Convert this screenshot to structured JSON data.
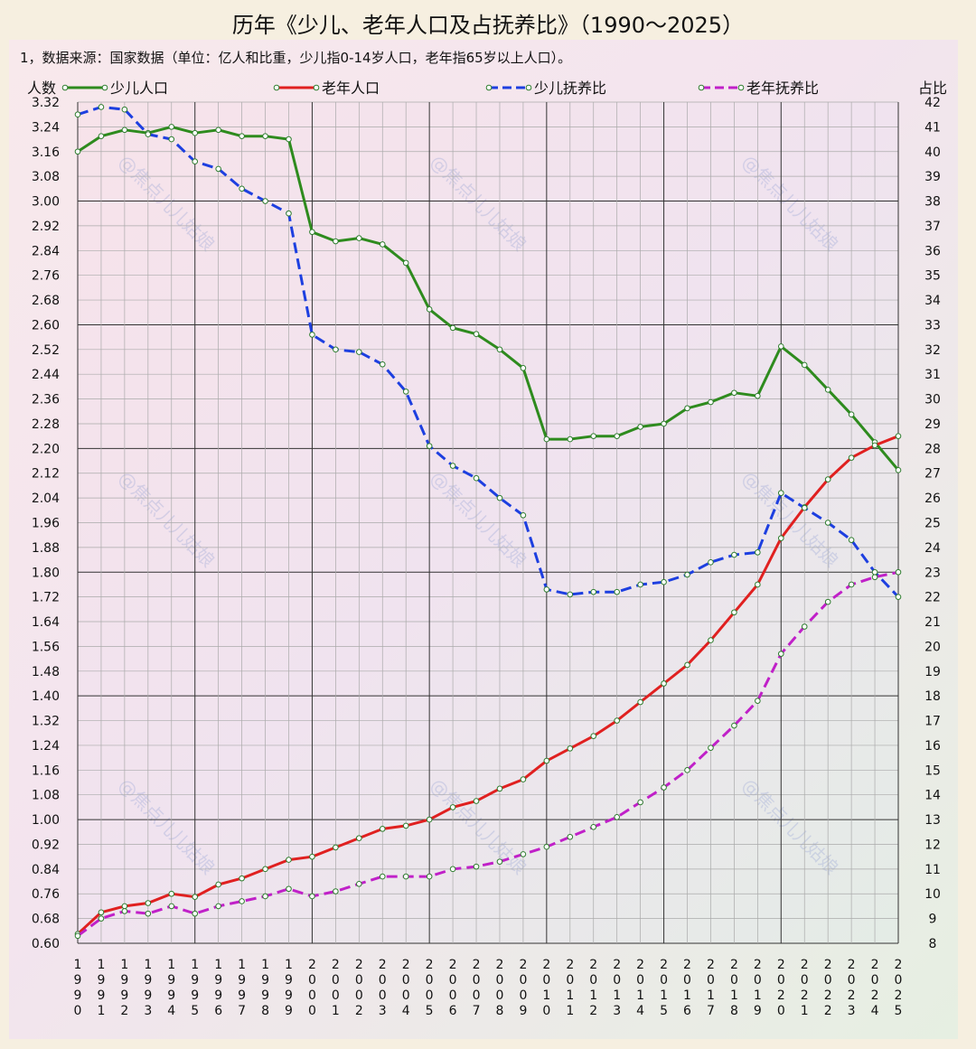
{
  "header": {
    "title": "历年《少儿、老年人口及占抚养比》（1990～2025）",
    "subtitle": "1，数据来源：国家数据（单位：亿人和比重，少儿指0-14岁人口，老年指65岁以上人口）。"
  },
  "watermark": "@焦点儿儿姑娘",
  "colors": {
    "child_population": "#2e8b1e",
    "elderly_population": "#e02020",
    "child_ratio": "#1d3fe0",
    "elderly_ratio": "#c020c8",
    "grid_minor": "#aaaaaa",
    "grid_major": "#333333"
  },
  "chart_data": {
    "type": "line",
    "title": "历年《少儿、老年人口及占抚养比》（1990～2025）",
    "ylabel_left": "人数",
    "ylabel_right": "占比",
    "ylim_left": [
      0.6,
      3.32
    ],
    "ylim_right": [
      8,
      42
    ],
    "yticks_left": [
      "0.60",
      "0.68",
      "0.76",
      "0.84",
      "0.92",
      "1.00",
      "1.08",
      "1.16",
      "1.24",
      "1.32",
      "1.40",
      "1.48",
      "1.56",
      "1.64",
      "1.72",
      "1.80",
      "1.88",
      "1.96",
      "2.04",
      "2.12",
      "2.20",
      "2.28",
      "2.36",
      "2.44",
      "2.52",
      "2.60",
      "2.68",
      "2.76",
      "2.84",
      "2.92",
      "3.00",
      "3.08",
      "3.16",
      "3.24",
      "3.32"
    ],
    "yticks_right": [
      "8",
      "9",
      "10",
      "11",
      "12",
      "13",
      "14",
      "15",
      "16",
      "17",
      "18",
      "19",
      "20",
      "21",
      "22",
      "23",
      "24",
      "25",
      "26",
      "27",
      "28",
      "29",
      "30",
      "31",
      "32",
      "33",
      "34",
      "35",
      "36",
      "37",
      "38",
      "39",
      "40",
      "41",
      "42"
    ],
    "x": [
      "1990",
      "1991",
      "1992",
      "1993",
      "1994",
      "1995",
      "1996",
      "1997",
      "1998",
      "1999",
      "2000",
      "2001",
      "2002",
      "2003",
      "2004",
      "2005",
      "2006",
      "2007",
      "2008",
      "2009",
      "2010",
      "2011",
      "2012",
      "2013",
      "2014",
      "2015",
      "2016",
      "2017",
      "2018",
      "2019",
      "2020",
      "2021",
      "2022",
      "2023",
      "2024",
      "2025"
    ],
    "legend_position": "top",
    "grid": true,
    "series": [
      {
        "name": "少儿人口",
        "axis": "left",
        "style": "solid",
        "color_key": "child_population",
        "values": [
          3.16,
          3.21,
          3.23,
          3.22,
          3.24,
          3.22,
          3.23,
          3.21,
          3.21,
          3.2,
          2.9,
          2.87,
          2.88,
          2.86,
          2.8,
          2.65,
          2.59,
          2.57,
          2.52,
          2.46,
          2.23,
          2.23,
          2.24,
          2.24,
          2.27,
          2.28,
          2.33,
          2.35,
          2.38,
          2.37,
          2.53,
          2.47,
          2.39,
          2.31,
          2.22,
          2.13
        ]
      },
      {
        "name": "老年人口",
        "axis": "left",
        "style": "solid",
        "color_key": "elderly_population",
        "values": [
          0.63,
          0.7,
          0.72,
          0.73,
          0.76,
          0.75,
          0.79,
          0.81,
          0.84,
          0.87,
          0.88,
          0.91,
          0.94,
          0.97,
          0.98,
          1.0,
          1.04,
          1.06,
          1.1,
          1.13,
          1.19,
          1.23,
          1.27,
          1.32,
          1.38,
          1.44,
          1.5,
          1.58,
          1.67,
          1.76,
          1.91,
          2.01,
          2.1,
          2.17,
          2.21,
          2.24
        ]
      },
      {
        "name": "少儿抚养比",
        "axis": "right",
        "style": "dashed",
        "color_key": "child_ratio",
        "values": [
          41.5,
          41.8,
          41.7,
          40.7,
          40.5,
          39.6,
          39.3,
          38.5,
          38.0,
          37.5,
          32.6,
          32.0,
          31.9,
          31.4,
          30.3,
          28.1,
          27.3,
          26.8,
          26.0,
          25.3,
          22.3,
          22.1,
          22.2,
          22.2,
          22.5,
          22.6,
          22.9,
          23.4,
          23.7,
          23.8,
          26.2,
          25.6,
          25.0,
          24.3,
          23.0,
          22.0
        ]
      },
      {
        "name": "老年抚养比",
        "axis": "right",
        "style": "dashed",
        "color_key": "elderly_ratio",
        "values": [
          8.3,
          9.0,
          9.3,
          9.2,
          9.5,
          9.2,
          9.5,
          9.7,
          9.9,
          10.2,
          9.9,
          10.1,
          10.4,
          10.7,
          10.7,
          10.7,
          11.0,
          11.1,
          11.3,
          11.6,
          11.9,
          12.3,
          12.7,
          13.1,
          13.7,
          14.3,
          15.0,
          15.9,
          16.8,
          17.8,
          19.7,
          20.8,
          21.8,
          22.5,
          22.8,
          23.0
        ]
      }
    ]
  }
}
